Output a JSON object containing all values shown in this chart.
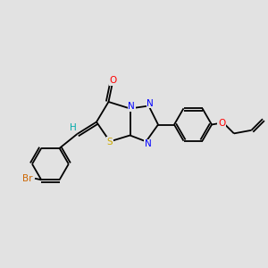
{
  "bg_color": "#e8e8e8",
  "bond_color": "#000000",
  "atom_colors": {
    "O": "#ff0000",
    "N": "#0000ff",
    "S": "#ccaa00",
    "Br": "#cc6600",
    "H": "#00aaaa",
    "C": "#000000"
  },
  "font_size": 7.5,
  "line_width": 1.3,
  "fig_bg": "#e2e2e2"
}
